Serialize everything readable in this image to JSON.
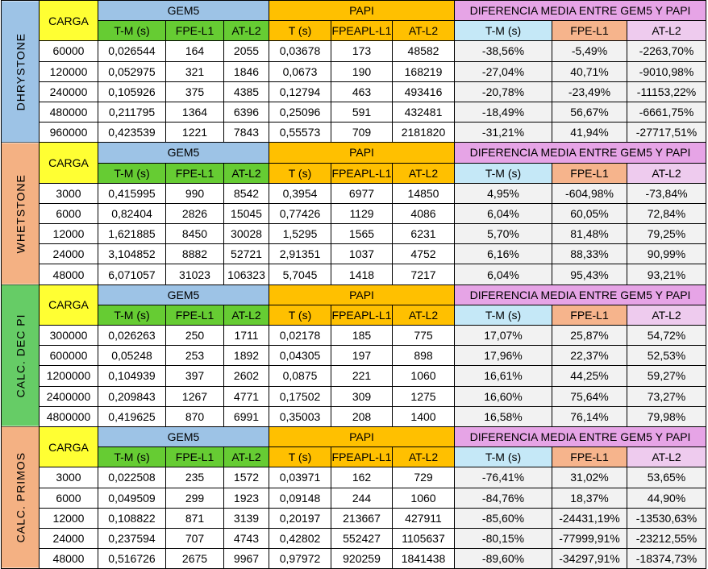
{
  "headers": {
    "carga": "CARGA",
    "gem5": "GEM5",
    "papi": "PAPI",
    "diff": "DIFERENCIA MEDIA ENTRE GEM5 Y PAPI",
    "gem5_cols": [
      "T-M (s)",
      "FPE-L1",
      "AT-L2"
    ],
    "papi_cols": [
      "T (s)",
      "FPEAPL-L1",
      "AT-L2"
    ],
    "diff_cols": [
      "T-M (s)",
      "FPE-L1",
      "AT-L2"
    ]
  },
  "colors": {
    "dhrystone": "#9dc3e6",
    "whetstone": "#f4b183",
    "calc_dec_pi": "#66cc66",
    "calc_primos": "#f4b183",
    "carga": "#ffff33",
    "gem5": "#9dc3e6",
    "papi": "#ffc000",
    "diff": "#e6a4e6"
  },
  "benchmarks": [
    {
      "name": "DHRYSTONE",
      "rows": [
        [
          "60000",
          "0,026544",
          "164",
          "2055",
          "0,03678",
          "173",
          "48582",
          "-38,56%",
          "-5,49%",
          "-2263,70%"
        ],
        [
          "120000",
          "0,052975",
          "321",
          "1846",
          "0,0673",
          "190",
          "168219",
          "-27,04%",
          "40,71%",
          "-9010,98%"
        ],
        [
          "240000",
          "0,105926",
          "375",
          "4385",
          "0,12794",
          "463",
          "493416",
          "-20,78%",
          "-23,49%",
          "-11153,22%"
        ],
        [
          "480000",
          "0,211795",
          "1364",
          "6396",
          "0,25096",
          "591",
          "432481",
          "-18,49%",
          "56,67%",
          "-6661,75%"
        ],
        [
          "960000",
          "0,423539",
          "1221",
          "7843",
          "0,55573",
          "709",
          "2181820",
          "-31,21%",
          "41,94%",
          "-27717,51%"
        ]
      ]
    },
    {
      "name": "WHETSTONE",
      "rows": [
        [
          "3000",
          "0,415995",
          "990",
          "8542",
          "0,3954",
          "6977",
          "14850",
          "4,95%",
          "-604,98%",
          "-73,84%"
        ],
        [
          "6000",
          "0,82404",
          "2826",
          "15045",
          "0,77426",
          "1129",
          "4086",
          "6,04%",
          "60,05%",
          "72,84%"
        ],
        [
          "12000",
          "1,621885",
          "8450",
          "30028",
          "1,5295",
          "1565",
          "6231",
          "5,70%",
          "81,48%",
          "79,25%"
        ],
        [
          "24000",
          "3,104852",
          "8882",
          "52721",
          "2,91351",
          "1037",
          "4752",
          "6,16%",
          "88,33%",
          "90,99%"
        ],
        [
          "48000",
          "6,071057",
          "31023",
          "106323",
          "5,7045",
          "1418",
          "7217",
          "6,04%",
          "95,43%",
          "93,21%"
        ]
      ]
    },
    {
      "name": "CALC. DEC PI",
      "rows": [
        [
          "300000",
          "0,026263",
          "250",
          "1711",
          "0,02178",
          "185",
          "775",
          "17,07%",
          "25,87%",
          "54,72%"
        ],
        [
          "600000",
          "0,05248",
          "253",
          "1892",
          "0,04305",
          "197",
          "898",
          "17,96%",
          "22,37%",
          "52,53%"
        ],
        [
          "1200000",
          "0,104939",
          "397",
          "2602",
          "0,0875",
          "221",
          "1060",
          "16,61%",
          "44,25%",
          "59,27%"
        ],
        [
          "2400000",
          "0,209843",
          "1267",
          "4771",
          "0,17502",
          "309",
          "1275",
          "16,60%",
          "75,64%",
          "73,27%"
        ],
        [
          "4800000",
          "0,419625",
          "870",
          "6991",
          "0,35003",
          "208",
          "1400",
          "16,58%",
          "76,14%",
          "79,98%"
        ]
      ]
    },
    {
      "name": "CALC. PRIMOS",
      "rows": [
        [
          "3000",
          "0,022508",
          "235",
          "1572",
          "0,03971",
          "162",
          "729",
          "-76,41%",
          "31,02%",
          "53,65%"
        ],
        [
          "6000",
          "0,049509",
          "299",
          "1923",
          "0,09148",
          "244",
          "1060",
          "-84,76%",
          "18,37%",
          "44,90%"
        ],
        [
          "12000",
          "0,108822",
          "871",
          "3139",
          "0,20197",
          "213667",
          "427911",
          "-85,60%",
          "-24431,19%",
          "-13530,63%"
        ],
        [
          "24000",
          "0,237594",
          "707",
          "4743",
          "0,42802",
          "552427",
          "1105637",
          "-80,15%",
          "-77999,91%",
          "-23212,55%"
        ],
        [
          "48000",
          "0,516726",
          "2675",
          "9967",
          "0,97972",
          "920259",
          "1841438",
          "-89,60%",
          "-34297,91%",
          "-18374,73%"
        ]
      ]
    }
  ]
}
